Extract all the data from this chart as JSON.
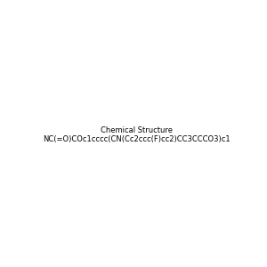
{
  "smiles": "NC(=O)COc1cccc(CN(Cc2ccc(F)cc2)CC3CCCO3)c1",
  "image_size": 300,
  "background_color": "#e8e8e8",
  "atom_colors": {
    "N": "#0000ff",
    "O": "#ff0000",
    "F": "#ff00ff"
  },
  "title": ""
}
